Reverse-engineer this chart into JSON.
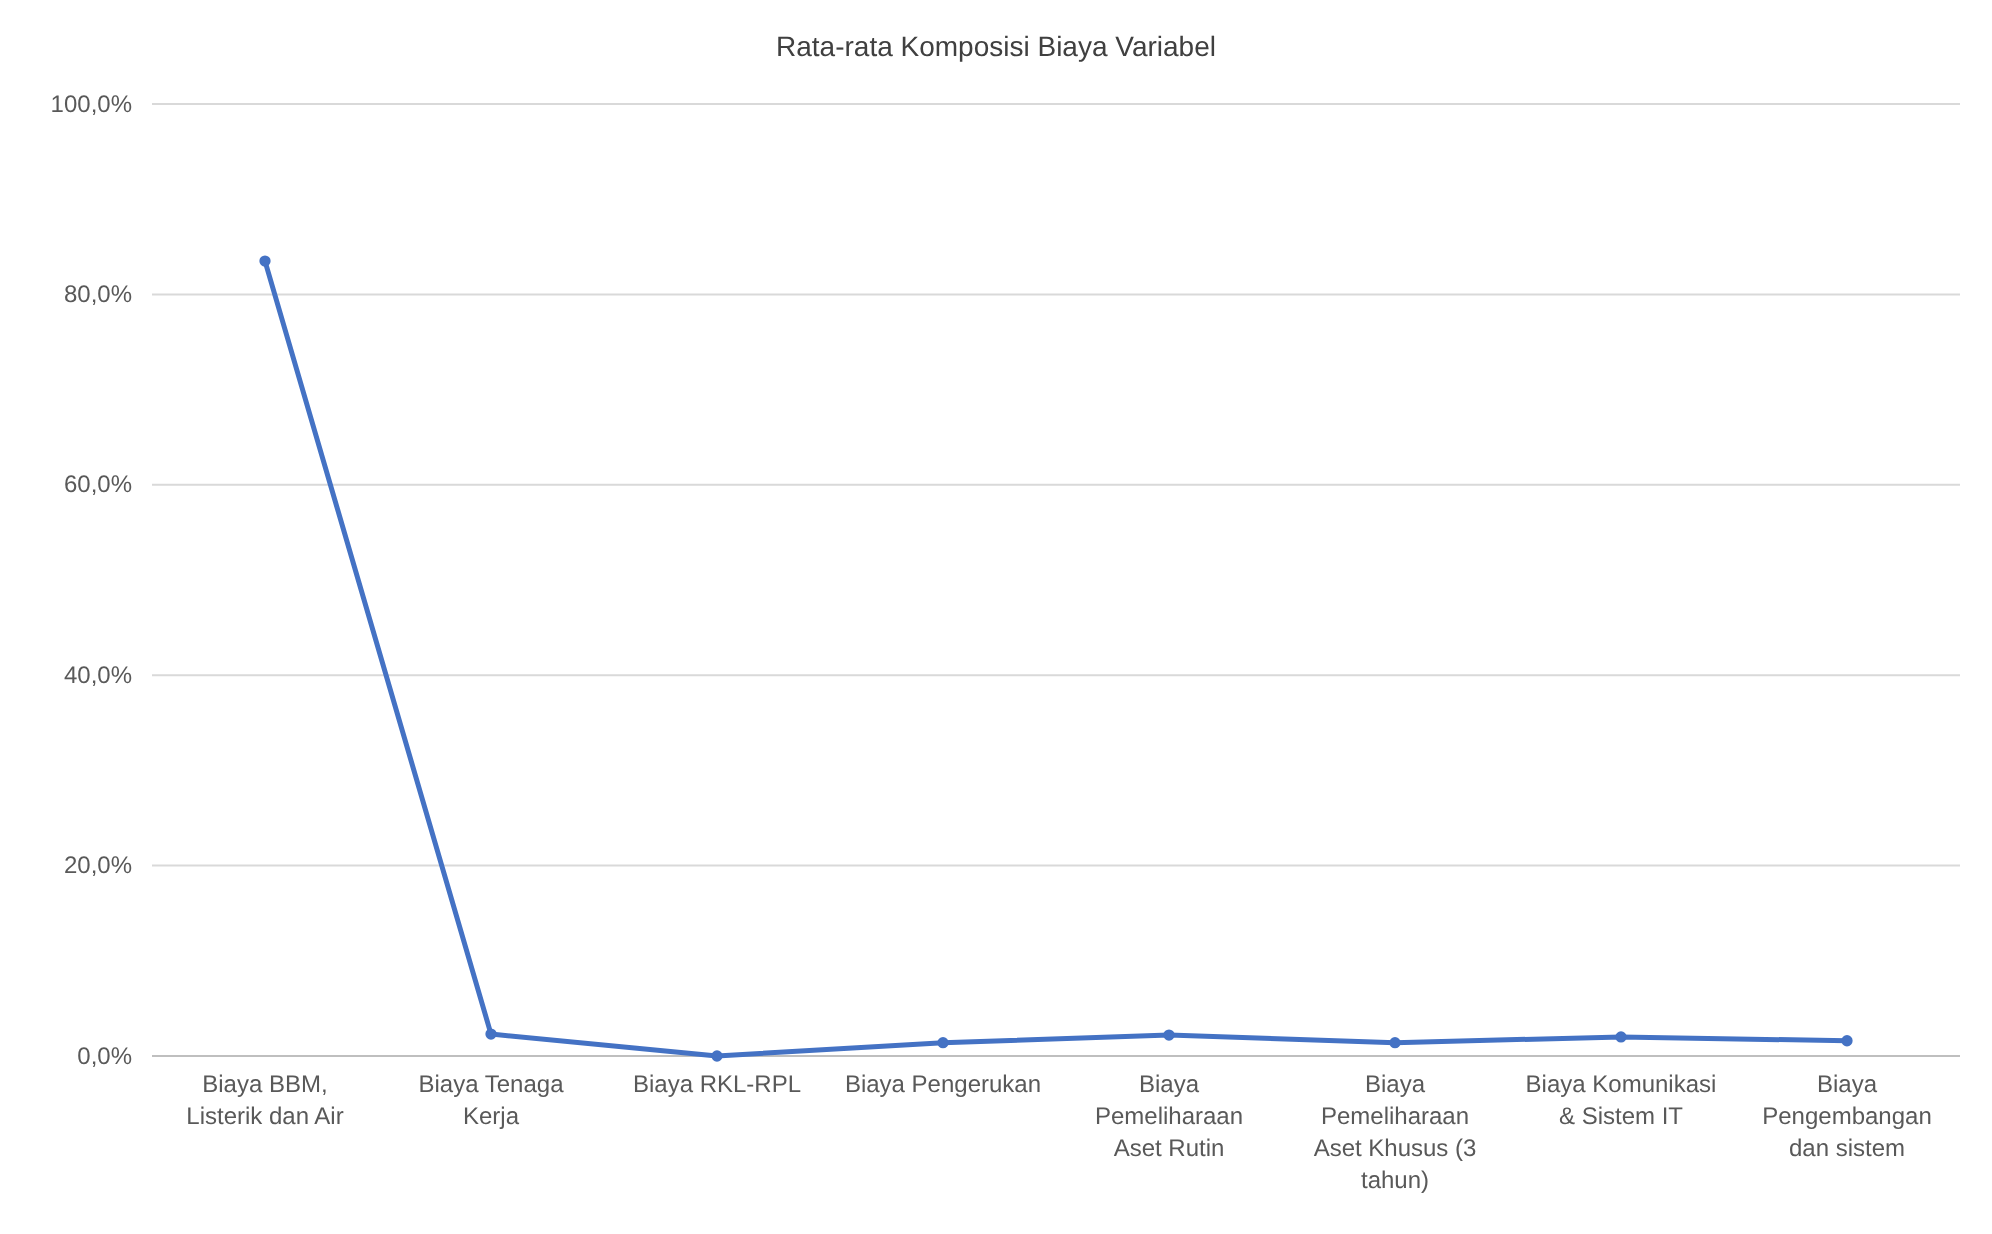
{
  "chart_data": {
    "type": "line",
    "title": "Rata-rata Komposisi Biaya Variabel",
    "categories": [
      "Biaya BBM, Listerik dan Air",
      "Biaya Tenaga Kerja",
      "Biaya RKL-RPL",
      "Biaya Pengerukan",
      "Biaya Pemeliharaan Aset Rutin",
      "Biaya Pemeliharaan Aset Khusus (3 tahun)",
      "Biaya Komunikasi & Sistem IT",
      "Biaya Pengembangan dan sistem"
    ],
    "series": [
      {
        "color": "#4472c4",
        "values": [
          83.5,
          2.3,
          0.0,
          1.4,
          2.2,
          1.4,
          2.0,
          1.6
        ]
      }
    ],
    "ylim": [
      0,
      100
    ],
    "yticks": [
      {
        "value": 0,
        "label": "0,0%"
      },
      {
        "value": 20,
        "label": "20,0%"
      },
      {
        "value": 40,
        "label": "40,0%"
      },
      {
        "value": 60,
        "label": "60,0%"
      },
      {
        "value": 80,
        "label": "80,0%"
      },
      {
        "value": 100,
        "label": "100,0%"
      }
    ],
    "grid": "y",
    "marker": "circle",
    "line_style": "solid"
  }
}
